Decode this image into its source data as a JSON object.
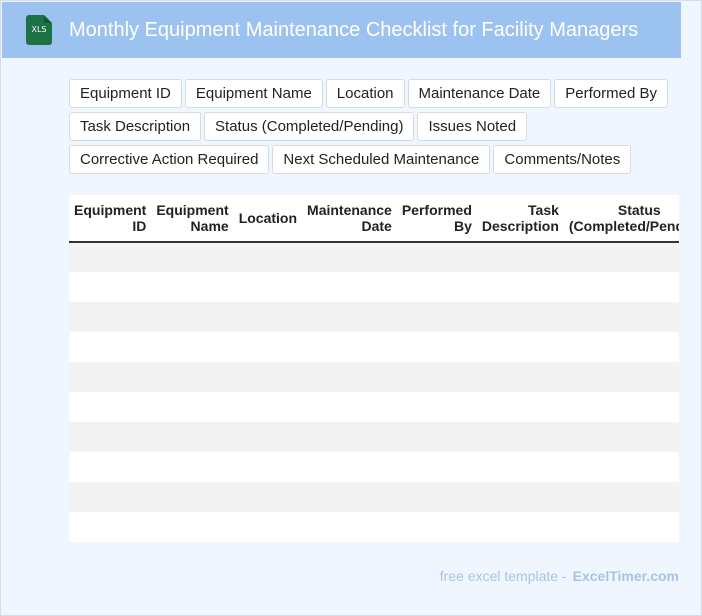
{
  "header": {
    "icon_label": "XLS",
    "title": "Monthly Equipment Maintenance Checklist for Facility Managers"
  },
  "tags": [
    "Equipment ID",
    "Equipment Name",
    "Location",
    "Maintenance Date",
    "Performed By",
    "Task Description",
    "Status (Completed/Pending)",
    "Issues Noted",
    "Corrective Action Required",
    "Next Scheduled Maintenance",
    "Comments/Notes"
  ],
  "table": {
    "columns": [
      "Equipment ID",
      "Equipment Name",
      "Location",
      "Maintenance Date",
      "Performed By",
      "Task Description",
      "Status (Completed/Pending)"
    ],
    "row_count": 10
  },
  "footer": {
    "text": "free excel template -",
    "brand": "ExcelTimer.com"
  }
}
